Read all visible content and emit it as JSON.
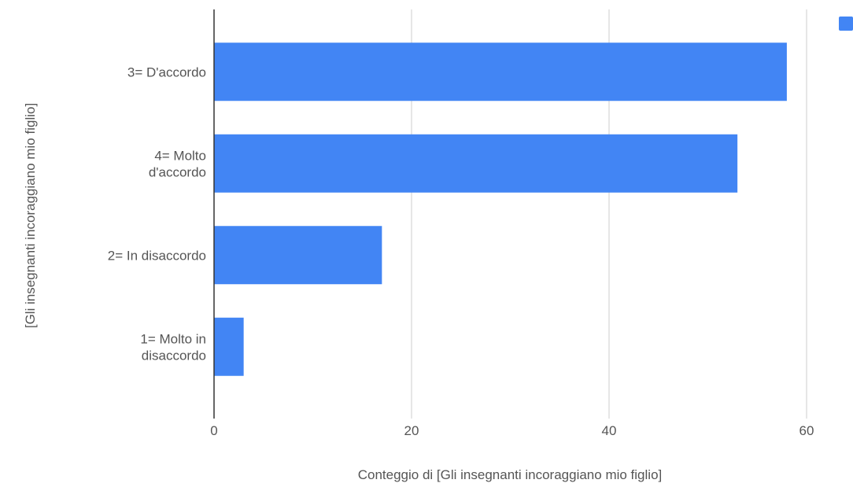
{
  "chart_data": {
    "type": "bar",
    "orientation": "horizontal",
    "categories": [
      "3= D'accordo",
      "4= Molto d'accordo",
      "2= In disaccordo",
      "1= Molto in disaccordo"
    ],
    "category_lines": [
      [
        "3= D'accordo"
      ],
      [
        "4= Molto",
        "d'accordo"
      ],
      [
        "2= In disaccordo"
      ],
      [
        "1= Molto in",
        "disaccordo"
      ]
    ],
    "values": [
      58,
      53,
      17,
      3
    ],
    "xlabel": "Conteggio di  [Gli insegnanti incoraggiano mio figlio]",
    "ylabel": "[Gli insegnanti incoraggiano mio figlio]",
    "xlim": [
      0,
      65
    ],
    "xticks": [
      0,
      20,
      40,
      60
    ],
    "xtick_labels": [
      "0",
      "20",
      "40",
      "60"
    ],
    "grid": true,
    "legend": {
      "position": "top-right",
      "entries": [
        ""
      ]
    },
    "bar_color": "#4285f4",
    "grid_color": "#cccccc",
    "axis_color": "#333333"
  }
}
